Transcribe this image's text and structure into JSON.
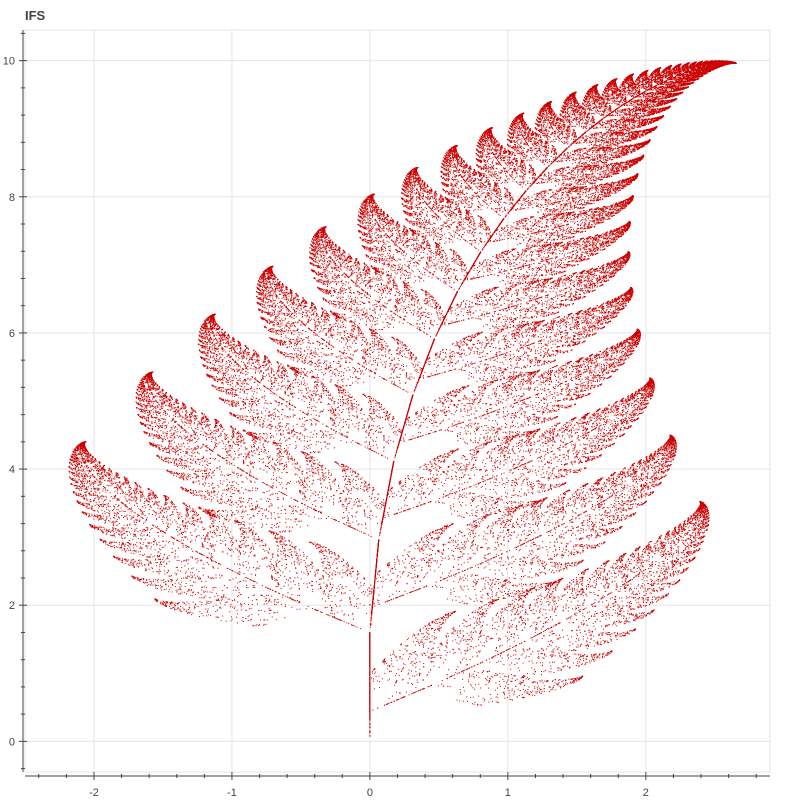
{
  "chart_data": {
    "type": "scatter",
    "title": "IFS",
    "xlabel": "",
    "ylabel": "",
    "xlim": [
      -2.5,
      2.9
    ],
    "ylim": [
      -0.45,
      10.45
    ],
    "x_ticks": [
      -2,
      -1,
      0,
      1,
      2
    ],
    "y_ticks": [
      0,
      2,
      4,
      6,
      8,
      10
    ],
    "grid": true,
    "legend": "none",
    "series": [
      {
        "generator": "barnsley-fern",
        "point_count": 60000,
        "color": "#cc0000",
        "maps": [
          {
            "a": 0.0,
            "b": 0.0,
            "c": 0.0,
            "d": 0.16,
            "e": 0.0,
            "f": 0.0,
            "p": 0.01
          },
          {
            "a": 0.85,
            "b": 0.04,
            "c": -0.04,
            "d": 0.85,
            "e": 0.0,
            "f": 1.6,
            "p": 0.85
          },
          {
            "a": 0.2,
            "b": -0.26,
            "c": 0.23,
            "d": 0.22,
            "e": 0.0,
            "f": 1.6,
            "p": 0.07
          },
          {
            "a": -0.15,
            "b": 0.28,
            "c": 0.26,
            "d": 0.24,
            "e": 0.0,
            "f": 0.44,
            "p": 0.07
          }
        ]
      }
    ]
  },
  "colors": {
    "points": "#cc0000",
    "grid": "#e5e5e5",
    "axis": "#444444",
    "frame": "#e5e5e5"
  }
}
